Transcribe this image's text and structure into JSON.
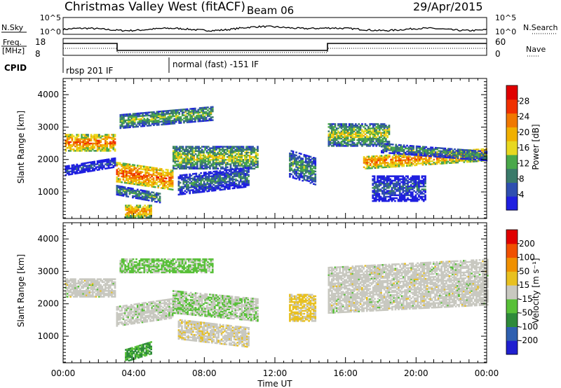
{
  "header": {
    "station": "Christmas Valley West (fitACF)",
    "beam": "Beam 06",
    "date": "29/Apr/2015"
  },
  "nsky": {
    "label": "N.Sky",
    "right_label": "N.Search",
    "ticks_left": [
      "10^5",
      "10^0"
    ],
    "ticks_right": [
      "10^5",
      "10^0"
    ]
  },
  "freq": {
    "label_1": "Freq.",
    "label_2": "[MHz]",
    "ticks_left": [
      "18",
      "8"
    ],
    "ticks_right": [
      "60",
      "0"
    ],
    "right_label": "Nave"
  },
  "cpid": {
    "label": "CPID",
    "segments": [
      {
        "start_h": 0,
        "text": "rbsp 201 IF"
      },
      {
        "start_h": 6,
        "text": "normal (fast) -151 IF"
      }
    ]
  },
  "xaxis": {
    "label": "Time UT",
    "range_h": [
      0,
      24
    ],
    "ticks": [
      {
        "h": 0,
        "label": "00:00"
      },
      {
        "h": 4,
        "label": "04:00"
      },
      {
        "h": 8,
        "label": "08:00"
      },
      {
        "h": 12,
        "label": "12:00"
      },
      {
        "h": 16,
        "label": "16:00"
      },
      {
        "h": 20,
        "label": "20:00"
      },
      {
        "h": 24,
        "label": "00:00"
      }
    ]
  },
  "chart_data": [
    {
      "type": "heatmap",
      "panel": "power",
      "ylabel": "Slant Range [km]",
      "ylim": [
        180,
        4500
      ],
      "yticks": [
        1000,
        2000,
        3000,
        4000
      ],
      "colorbar": {
        "title": "Power [dB]",
        "range": [
          0,
          32
        ],
        "ticks": [
          "4",
          "8",
          "12",
          "16",
          "20",
          "24",
          "28"
        ],
        "colors": [
          "#1f1fe0",
          "#2f4fb0",
          "#3a7a6a",
          "#4aa84a",
          "#e8d820",
          "#f0b000",
          "#f07800",
          "#f03000",
          "#e00000"
        ]
      },
      "echo_regions": [
        {
          "t": [
            0.1,
            2.9
          ],
          "r": [
            2250,
            2750
          ],
          "level": 24
        },
        {
          "t": [
            0.1,
            2.9
          ],
          "r": [
            1500,
            1800
          ],
          "level": 6
        },
        {
          "t": [
            3.0,
            6.2
          ],
          "r": [
            1300,
            1900
          ],
          "level": 25
        },
        {
          "t": [
            6.2,
            11.0
          ],
          "r": [
            1700,
            2400
          ],
          "level": 16
        },
        {
          "t": [
            3.2,
            8.5
          ],
          "r": [
            2950,
            3400
          ],
          "level": 14
        },
        {
          "t": [
            3.0,
            5.5
          ],
          "r": [
            900,
            1200
          ],
          "level": 12
        },
        {
          "t": [
            3.5,
            5.0
          ],
          "r": [
            200,
            600
          ],
          "level": 22
        },
        {
          "t": [
            6.5,
            10.5
          ],
          "r": [
            900,
            1500
          ],
          "level": 10
        },
        {
          "t": [
            12.8,
            14.3
          ],
          "r": [
            1450,
            2300
          ],
          "level": 12
        },
        {
          "t": [
            15.0,
            18.5
          ],
          "r": [
            2400,
            3100
          ],
          "level": 16
        },
        {
          "t": [
            17.0,
            24.0
          ],
          "r": [
            1700,
            2100
          ],
          "level": 24
        },
        {
          "t": [
            18.0,
            24.0
          ],
          "r": [
            2200,
            2500
          ],
          "level": 12
        },
        {
          "t": [
            17.5,
            20.5
          ],
          "r": [
            700,
            1500
          ],
          "level": 8
        }
      ]
    },
    {
      "type": "heatmap",
      "panel": "velocity",
      "ylabel": "Slant Range [km]",
      "ylim": [
        180,
        4500
      ],
      "yticks": [
        1000,
        2000,
        3000,
        4000
      ],
      "colorbar": {
        "title": "Velocity [m s⁻¹]",
        "range": [
          -250,
          250
        ],
        "ticks": [
          "200",
          "100",
          "50",
          "15",
          "-15",
          "-50",
          "-100",
          "-200"
        ],
        "colors": [
          "#e00000",
          "#f05000",
          "#f09000",
          "#e8c020",
          "#c8c8c0",
          "#58c038",
          "#2e8a3a",
          "#2f60b0",
          "#1f1fd0"
        ]
      },
      "echo_regions": [
        {
          "t": [
            0.1,
            2.9
          ],
          "r": [
            2200,
            2750
          ],
          "vel": 0
        },
        {
          "t": [
            3.0,
            6.2
          ],
          "r": [
            1300,
            1900
          ],
          "vel": -5
        },
        {
          "t": [
            6.2,
            11.0
          ],
          "r": [
            1700,
            2400
          ],
          "vel": -20
        },
        {
          "t": [
            3.2,
            8.5
          ],
          "r": [
            2950,
            3400
          ],
          "vel": -40
        },
        {
          "t": [
            3.5,
            5.0
          ],
          "r": [
            200,
            600
          ],
          "vel": -90
        },
        {
          "t": [
            6.5,
            10.5
          ],
          "r": [
            900,
            1500
          ],
          "vel": 10
        },
        {
          "t": [
            12.8,
            14.3
          ],
          "r": [
            1450,
            2300
          ],
          "vel": 40
        },
        {
          "t": [
            15.0,
            24.0
          ],
          "r": [
            1700,
            3100
          ],
          "vel": 0
        }
      ]
    }
  ]
}
